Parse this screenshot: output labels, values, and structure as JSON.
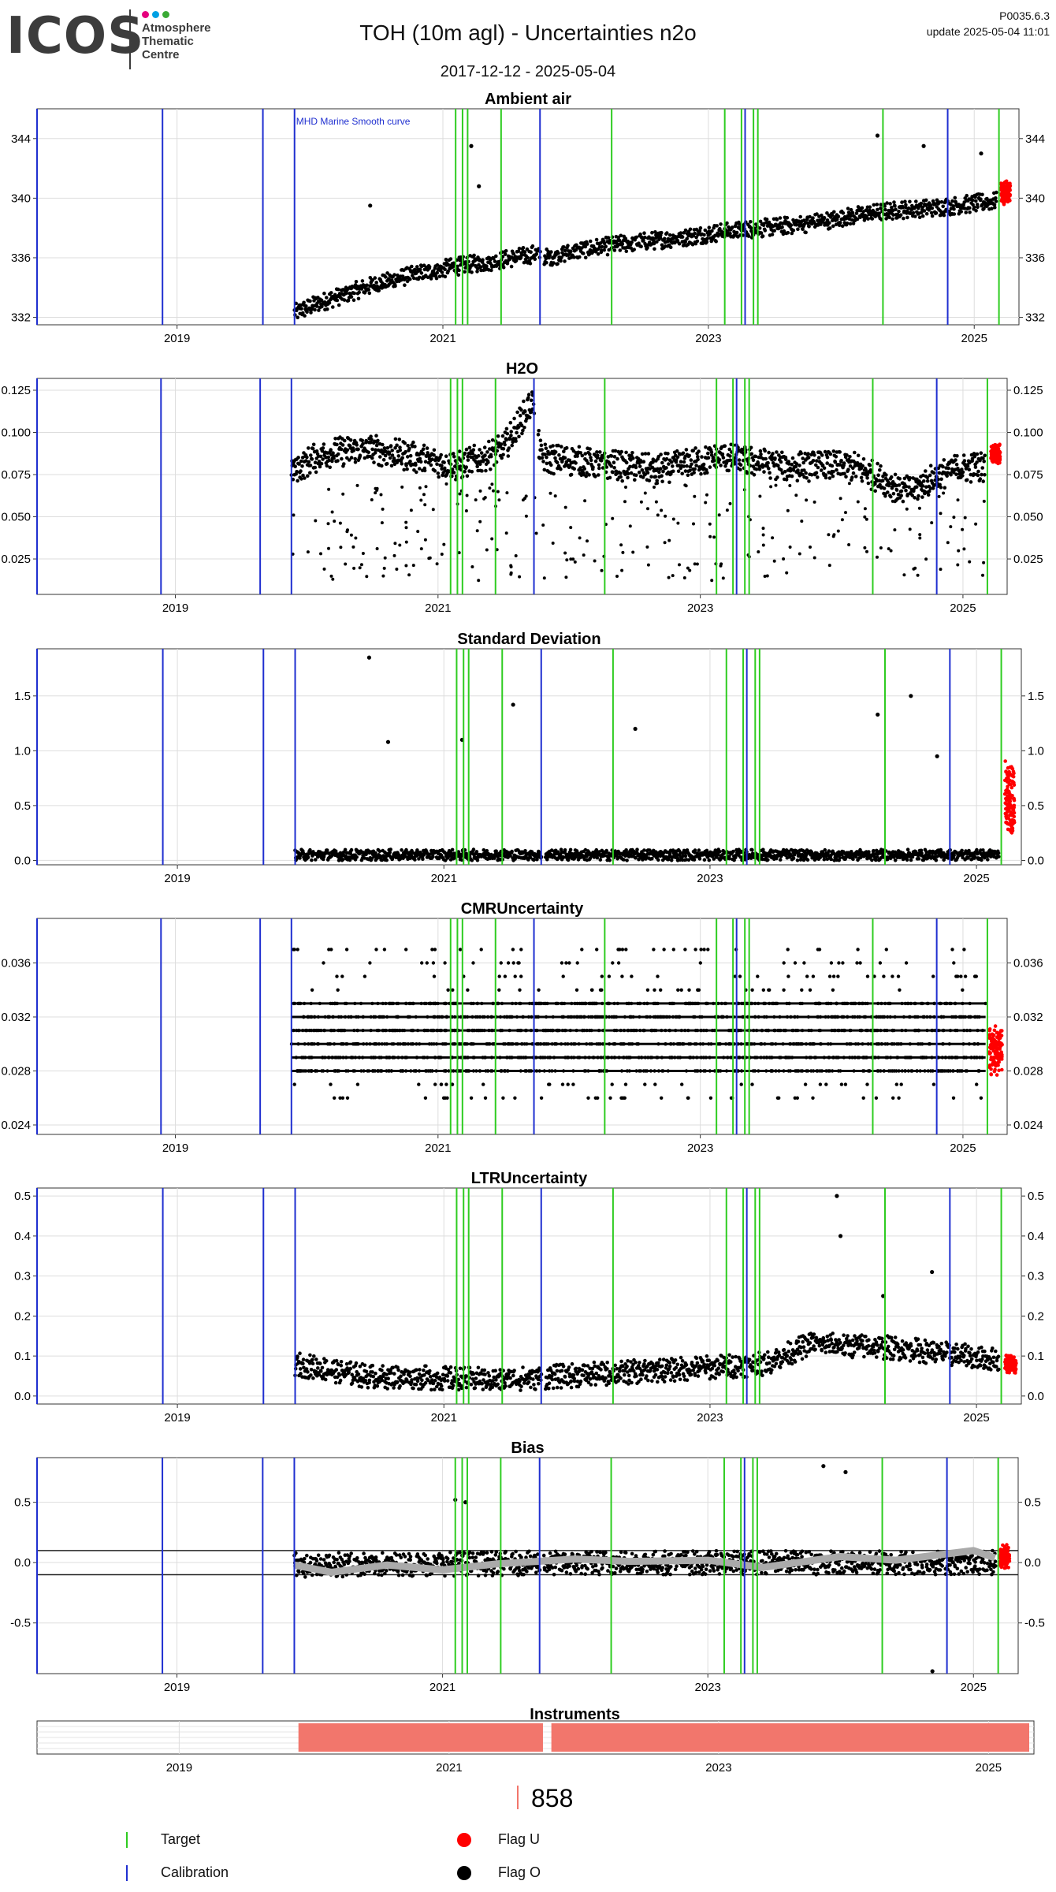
{
  "header": {
    "logo_text": "ICOS",
    "logo_lines": [
      "Atmosphere",
      "Thematic",
      "Centre"
    ],
    "logo_dot_colors": [
      "#e6007e",
      "#00a0e3",
      "#3aaa35"
    ],
    "title": "TOH  (10m agl) - Uncertainties n2o",
    "date_range": "2017-12-12 - 2025-05-04",
    "version": "P0035.6.3",
    "update": "update  2025-05-04 11:01"
  },
  "colors": {
    "target": "#2ecc20",
    "calibration": "#1f2fd0",
    "flag_u": "#ff0000",
    "flag_o": "#000000",
    "instrument": "#f2766c",
    "smooth": "#aaaaaa"
  },
  "chart_data": [
    {
      "type": "scatter",
      "title": "Ambient air",
      "xlim": [
        "2017-12-12",
        "2025-05-04"
      ],
      "xticks": [
        "2019",
        "2021",
        "2023",
        "2025"
      ],
      "ylim": [
        331.5,
        346
      ],
      "yticks": [
        332,
        336,
        340,
        344
      ],
      "ytick_labels": [
        "332",
        "336",
        "340",
        "344"
      ],
      "annotation": "MHD Marine Smooth curve",
      "series": [
        {
          "points": [
            [
              "2019-11-20",
              332.3
            ],
            [
              "2020-02-01",
              333.0
            ],
            [
              "2020-06-01",
              334.0
            ],
            [
              "2020-10-01",
              334.8
            ],
            [
              "2021-02-01",
              335.4
            ],
            [
              "2021-06-01",
              335.8
            ],
            [
              "2021-09-20",
              336.3
            ],
            [
              "2021-10-10",
              336.0
            ],
            [
              "2022-02-01",
              336.6
            ],
            [
              "2022-06-01",
              337.0
            ],
            [
              "2022-10-01",
              337.3
            ],
            [
              "2023-02-01",
              337.7
            ],
            [
              "2023-06-01",
              338.0
            ],
            [
              "2023-10-01",
              338.3
            ],
            [
              "2024-02-01",
              338.8
            ],
            [
              "2024-06-01",
              339.2
            ],
            [
              "2024-10-01",
              339.4
            ],
            [
              "2025-03-01",
              339.8
            ]
          ],
          "spread": 1.2
        }
      ],
      "spikes": [
        [
          "2020-06-15",
          339.5
        ],
        [
          "2021-03-20",
          343.5
        ],
        [
          "2021-04-10",
          340.8
        ],
        [
          "2024-04-10",
          344.2
        ],
        [
          "2024-08-15",
          343.5
        ],
        [
          "2025-01-20",
          343.0
        ]
      ],
      "flag_u": [
        [
          "2025-03-15",
          340.0
        ],
        [
          "2025-04-10",
          340.8
        ]
      ]
    },
    {
      "type": "scatter",
      "title": "H2O",
      "xlim": [
        "2017-12-12",
        "2025-05-04"
      ],
      "xticks": [
        "2019",
        "2021",
        "2023",
        "2025"
      ],
      "ylim": [
        0.004,
        0.132
      ],
      "yticks": [
        0.025,
        0.05,
        0.075,
        0.1,
        0.125
      ],
      "ytick_labels": [
        "0.025",
        "0.050",
        "0.075",
        "0.100",
        "0.125"
      ],
      "series": [
        {
          "points": [
            [
              "2019-11-20",
              0.078
            ],
            [
              "2020-03-01",
              0.088
            ],
            [
              "2020-07-01",
              0.09
            ],
            [
              "2020-11-01",
              0.085
            ],
            [
              "2021-03-01",
              0.08
            ],
            [
              "2021-07-01",
              0.09
            ],
            [
              "2021-09-20",
              0.118
            ],
            [
              "2021-10-15",
              0.085
            ],
            [
              "2022-03-01",
              0.082
            ],
            [
              "2022-09-01",
              0.078
            ],
            [
              "2023-03-01",
              0.085
            ],
            [
              "2023-09-01",
              0.08
            ],
            [
              "2024-03-01",
              0.08
            ],
            [
              "2024-08-01",
              0.065
            ],
            [
              "2024-12-01",
              0.078
            ],
            [
              "2025-03-01",
              0.08
            ]
          ],
          "spread": 0.018
        }
      ],
      "scatter_low": [
        0.012,
        0.07
      ],
      "flag_u": [
        [
          "2025-03-20",
          0.085
        ],
        [
          "2025-04-15",
          0.09
        ]
      ]
    },
    {
      "type": "scatter",
      "title": "Standard Deviation",
      "xlim": [
        "2017-12-12",
        "2025-05-04"
      ],
      "xticks": [
        "2019",
        "2021",
        "2023",
        "2025"
      ],
      "ylim": [
        -0.04,
        1.93
      ],
      "yticks": [
        0,
        0.5,
        1.0,
        1.5
      ],
      "ytick_labels": [
        "0.0",
        "0.5",
        "1.0",
        "1.5"
      ],
      "series": [
        {
          "points": [
            [
              "2019-11-20",
              0.05
            ],
            [
              "2025-03-01",
              0.05
            ]
          ],
          "spread": 0.1
        }
      ],
      "spikes": [
        [
          "2020-06-10",
          1.85
        ],
        [
          "2021-07-10",
          1.42
        ],
        [
          "2024-04-05",
          1.33
        ],
        [
          "2024-07-05",
          1.5
        ],
        [
          "2022-06-10",
          1.2
        ],
        [
          "2020-08-01",
          1.08
        ],
        [
          "2021-02-20",
          1.1
        ],
        [
          "2024-09-15",
          0.95
        ]
      ],
      "flag_u": [
        [
          "2025-03-20",
          0.3
        ],
        [
          "2025-04-15",
          0.85
        ]
      ]
    },
    {
      "type": "scatter",
      "title": "CMRUncertainty",
      "xlim": [
        "2017-12-12",
        "2025-05-04"
      ],
      "xticks": [
        "2019",
        "2021",
        "2023",
        "2025"
      ],
      "ylim": [
        0.0233,
        0.0393
      ],
      "yticks": [
        0.024,
        0.028,
        0.032,
        0.036
      ],
      "ytick_labels": [
        "0.024",
        "0.028",
        "0.032",
        "0.036"
      ],
      "levels": [
        0.026,
        0.027,
        0.028,
        0.029,
        0.03,
        0.031,
        0.032,
        0.033,
        0.034,
        0.035,
        0.036,
        0.037
      ],
      "xrange": [
        "2019-11-20",
        "2025-03-05"
      ],
      "flag_u": [
        [
          "2025-03-15",
          0.028
        ],
        [
          "2025-04-20",
          0.031
        ]
      ]
    },
    {
      "type": "scatter",
      "title": "LTRUncertainty",
      "xlim": [
        "2017-12-12",
        "2025-05-04"
      ],
      "xticks": [
        "2019",
        "2021",
        "2023",
        "2025"
      ],
      "ylim": [
        -0.02,
        0.52
      ],
      "yticks": [
        0,
        0.1,
        0.2,
        0.3,
        0.4,
        0.5
      ],
      "ytick_labels": [
        "0.0",
        "0.1",
        "0.2",
        "0.3",
        "0.4",
        "0.5"
      ],
      "series": [
        {
          "points": [
            [
              "2019-11-20",
              0.08
            ],
            [
              "2020-06-01",
              0.05
            ],
            [
              "2021-06-01",
              0.04
            ],
            [
              "2022-06-01",
              0.06
            ],
            [
              "2023-06-01",
              0.08
            ],
            [
              "2023-10-01",
              0.13
            ],
            [
              "2024-06-01",
              0.12
            ],
            [
              "2025-03-01",
              0.09
            ]
          ],
          "spread": 0.06
        }
      ],
      "spikes": [
        [
          "2023-12-15",
          0.5
        ],
        [
          "2023-12-25",
          0.4
        ],
        [
          "2024-04-20",
          0.25
        ],
        [
          "2024-09-01",
          0.31
        ]
      ],
      "flag_u": [
        [
          "2025-03-20",
          0.07
        ],
        [
          "2025-04-20",
          0.09
        ]
      ]
    },
    {
      "type": "scatter",
      "title": "Bias",
      "xlim": [
        "2017-12-12",
        "2025-05-04"
      ],
      "xticks": [
        "2019",
        "2021",
        "2023",
        "2025"
      ],
      "ylim": [
        -0.92,
        0.87
      ],
      "yticks": [
        -0.5,
        0,
        0.5
      ],
      "ytick_labels": [
        "-0.5",
        "0.0",
        "0.5"
      ],
      "hlines": [
        0.1,
        -0.1
      ],
      "series": [
        {
          "points": [
            [
              "2019-11-20",
              -0.02
            ],
            [
              "2022-06-01",
              0.0
            ],
            [
              "2025-03-01",
              0.0
            ]
          ],
          "spread": 0.2
        }
      ],
      "smooth": [
        [
          "2019-11-20",
          -0.02
        ],
        [
          "2020-03-01",
          -0.08
        ],
        [
          "2020-08-01",
          -0.02
        ],
        [
          "2021-01-01",
          -0.06
        ],
        [
          "2021-06-01",
          -0.01
        ],
        [
          "2022-01-01",
          0.03
        ],
        [
          "2022-06-01",
          0.01
        ],
        [
          "2023-01-01",
          0.02
        ],
        [
          "2023-06-01",
          -0.04
        ],
        [
          "2024-01-01",
          0.05
        ],
        [
          "2024-06-01",
          0.02
        ],
        [
          "2025-01-01",
          0.1
        ],
        [
          "2025-03-01",
          0.04
        ]
      ],
      "spikes": [
        [
          "2021-02-05",
          0.52
        ],
        [
          "2021-03-05",
          0.5
        ],
        [
          "2023-11-15",
          0.8
        ],
        [
          "2024-01-15",
          0.75
        ],
        [
          "2024-09-10",
          -0.9
        ]
      ],
      "flag_u": [
        [
          "2025-03-15",
          0.1
        ],
        [
          "2025-04-10",
          0.0
        ]
      ]
    }
  ],
  "events": {
    "calibration": [
      "2017-12-12",
      "2018-11-22",
      "2019-08-25",
      "2019-11-20",
      "2021-09-25",
      "2023-04-12",
      "2024-10-20"
    ],
    "target": [
      "2021-02-05",
      "2021-02-24",
      "2021-03-10",
      "2021-06-10",
      "2022-04-10",
      "2023-02-15",
      "2023-04-02",
      "2023-05-05",
      "2023-05-17",
      "2024-04-25",
      "2025-03-10"
    ]
  },
  "instruments": {
    "title": "Instruments",
    "bars": [
      [
        "2019-11-20",
        "2021-09-25"
      ],
      [
        "2021-10-05",
        "2025-05-04"
      ]
    ],
    "xticks": [
      "2019",
      "2021",
      "2023",
      "2025"
    ]
  },
  "count_label": "858",
  "legend": [
    {
      "label": "Target",
      "key": "line-green"
    },
    {
      "label": "Calibration",
      "key": "line-blue"
    },
    {
      "label": "Flag U",
      "key": "dot-red"
    },
    {
      "label": "Flag O",
      "key": "dot-black"
    }
  ]
}
